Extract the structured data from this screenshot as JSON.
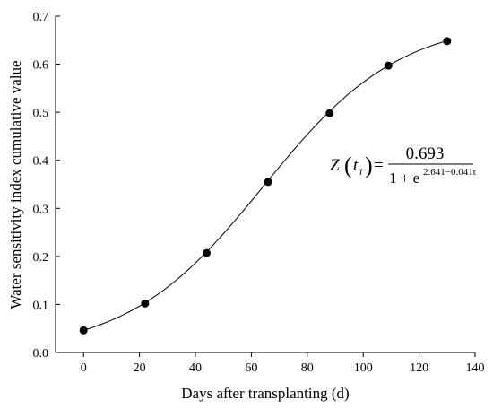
{
  "chart_data": {
    "type": "scatter",
    "xlabel": "Days after transplanting (d)",
    "ylabel": "Water sensitivity index cumulative value",
    "xlim": [
      -10,
      140
    ],
    "ylim": [
      0,
      0.7
    ],
    "xticks": [
      "0",
      "20",
      "40",
      "60",
      "80",
      "100",
      "120",
      "140"
    ],
    "yticks": [
      "0.0",
      "0.1",
      "0.2",
      "0.3",
      "0.4",
      "0.5",
      "0.6",
      "0.7"
    ],
    "points": [
      {
        "x": 0,
        "y": 0.046
      },
      {
        "x": 22,
        "y": 0.102
      },
      {
        "x": 44,
        "y": 0.207
      },
      {
        "x": 66,
        "y": 0.355
      },
      {
        "x": 88,
        "y": 0.498
      },
      {
        "x": 109,
        "y": 0.597
      },
      {
        "x": 130,
        "y": 0.648
      }
    ],
    "fit": {
      "K": 0.693,
      "a": 2.641,
      "b": 0.041,
      "x_range": [
        0,
        130
      ]
    },
    "equation": {
      "lhs_var": "Z",
      "lhs_arg": "t",
      "lhs_sub": "i",
      "equals": "=",
      "numerator": "0.693",
      "denominator_prefix": "1 + e",
      "exponent": "2.641−0.041t"
    }
  }
}
